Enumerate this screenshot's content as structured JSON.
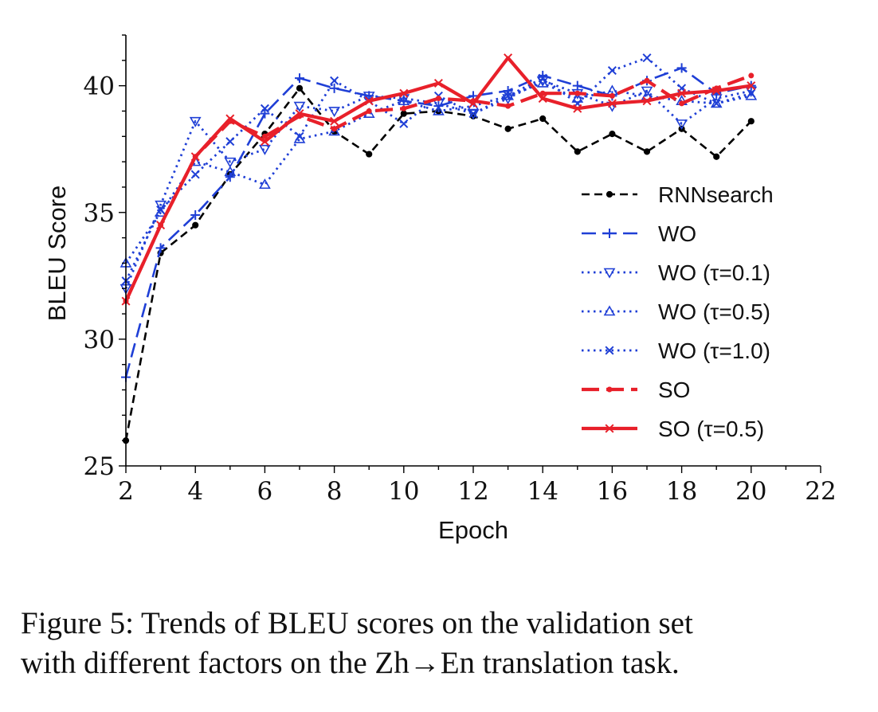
{
  "chart_data": {
    "type": "line",
    "title": "",
    "xlabel": "Epoch",
    "ylabel": "BLEU Score",
    "xlim": [
      2,
      22
    ],
    "ylim": [
      25,
      42
    ],
    "xticks": [
      2,
      4,
      6,
      8,
      10,
      12,
      14,
      16,
      18,
      20,
      22
    ],
    "yticks": [
      25,
      30,
      35,
      40
    ],
    "legend_position": "right",
    "x": [
      2,
      3,
      4,
      5,
      6,
      7,
      8,
      9,
      10,
      11,
      12,
      13,
      14,
      15,
      16,
      17,
      18,
      19,
      20
    ],
    "series": [
      {
        "name": "RNNsearch",
        "color": "#000000",
        "dash": "dashed",
        "marker": "dot",
        "values": [
          26.0,
          33.4,
          34.5,
          36.5,
          38.1,
          39.9,
          38.2,
          37.3,
          38.9,
          39.0,
          38.8,
          38.3,
          38.7,
          37.4,
          38.1,
          37.4,
          38.3,
          37.2,
          38.6
        ]
      },
      {
        "name": "WO",
        "color": "#1f3fd6",
        "dash": "longdash",
        "marker": "plus",
        "values": [
          28.5,
          33.6,
          34.9,
          36.4,
          38.9,
          40.3,
          39.9,
          39.6,
          39.4,
          39.2,
          39.6,
          39.8,
          40.4,
          40.0,
          39.6,
          40.2,
          40.7,
          39.7,
          40.0
        ]
      },
      {
        "name": "WO (τ=0.1)",
        "color": "#1f3fd6",
        "dash": "dotted",
        "marker": "triangle-down",
        "values": [
          32.0,
          35.3,
          38.6,
          37.0,
          37.5,
          39.2,
          39.0,
          39.6,
          39.5,
          39.3,
          38.9,
          39.5,
          40.2,
          39.7,
          39.2,
          39.8,
          38.5,
          39.5,
          39.8
        ]
      },
      {
        "name": "WO (τ=0.5)",
        "color": "#1f3fd6",
        "dash": "dotted",
        "marker": "triangle-up",
        "values": [
          33.0,
          35.0,
          37.0,
          36.6,
          36.1,
          37.9,
          38.2,
          38.9,
          39.4,
          39.0,
          39.2,
          39.6,
          40.1,
          39.5,
          39.8,
          39.6,
          39.4,
          39.3,
          39.6
        ]
      },
      {
        "name": "WO (τ=1.0)",
        "color": "#1f3fd6",
        "dash": "dotted",
        "marker": "x",
        "values": [
          32.3,
          35.1,
          36.5,
          37.8,
          39.1,
          38.0,
          40.2,
          39.4,
          38.5,
          39.6,
          38.9,
          39.6,
          40.3,
          39.3,
          40.6,
          41.1,
          39.9,
          39.3,
          39.7
        ]
      },
      {
        "name": "SO",
        "color": "#e8202a",
        "dash": "bigdash",
        "marker": "dot",
        "values": [
          31.5,
          34.5,
          37.2,
          38.6,
          38.0,
          38.8,
          38.3,
          39.0,
          39.1,
          39.5,
          39.4,
          39.2,
          39.7,
          39.7,
          39.6,
          40.2,
          39.3,
          39.9,
          40.4
        ]
      },
      {
        "name": "SO (τ=0.5)",
        "color": "#e8202a",
        "dash": "solid",
        "marker": "x",
        "values": [
          31.5,
          34.5,
          37.2,
          38.7,
          37.8,
          38.9,
          38.6,
          39.4,
          39.7,
          40.1,
          39.3,
          41.1,
          39.5,
          39.1,
          39.3,
          39.4,
          39.7,
          39.8,
          40.0
        ]
      }
    ]
  },
  "caption": {
    "line1": "Figure 5: Trends of BLEU scores on the validation set",
    "line2": "with different factors on the Zh→En translation task."
  }
}
